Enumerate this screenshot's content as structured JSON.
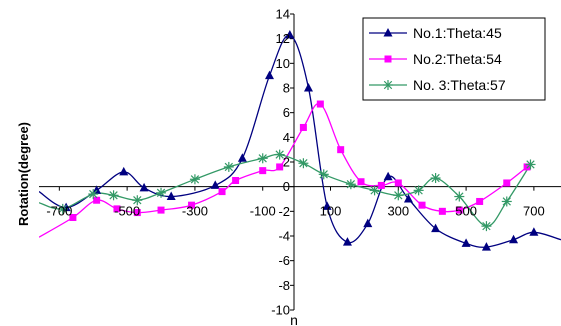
{
  "chart_data": {
    "type": "line",
    "title": "",
    "xlabel": "n",
    "ylabel": "Rotation(degree)",
    "xlim": [
      -760,
      780
    ],
    "ylim": [
      -10,
      14
    ],
    "x_ticks": [
      -700,
      -500,
      -300,
      -100,
      100,
      300,
      500,
      700
    ],
    "y_ticks": [
      -10,
      -8,
      -6,
      -4,
      -2,
      0,
      2,
      4,
      6,
      8,
      10,
      12,
      14
    ],
    "grid": false,
    "legend_position": "top-right",
    "series": [
      {
        "name": "No.1:Theta:45",
        "color": "#000080",
        "marker": "triangle",
        "smooth": true,
        "points": [
          [
            -760,
            -0.4
          ],
          [
            -680,
            -1.7
          ],
          [
            -590,
            -0.3
          ],
          [
            -510,
            1.2
          ],
          [
            -450,
            -0.1
          ],
          [
            -370,
            -0.8
          ],
          [
            -240,
            0.1
          ],
          [
            -160,
            2.3
          ],
          [
            -80,
            9.0
          ],
          [
            -20,
            12.3
          ],
          [
            35,
            8.0
          ],
          [
            90,
            -1.6
          ],
          [
            150,
            -4.5
          ],
          [
            210,
            -3.0
          ],
          [
            270,
            0.8
          ],
          [
            330,
            -1.0
          ],
          [
            410,
            -3.4
          ],
          [
            500,
            -4.6
          ],
          [
            560,
            -4.9
          ],
          [
            640,
            -4.3
          ],
          [
            700,
            -3.7
          ],
          [
            780,
            -4.3
          ]
        ]
      },
      {
        "name": "No.2:Theta:54",
        "color": "#FF00FF",
        "marker": "square",
        "smooth": true,
        "points": [
          [
            -760,
            -4.1
          ],
          [
            -660,
            -2.5
          ],
          [
            -590,
            -1.1
          ],
          [
            -530,
            -1.8
          ],
          [
            -470,
            -2.1
          ],
          [
            -400,
            -1.9
          ],
          [
            -310,
            -1.5
          ],
          [
            -220,
            -0.4
          ],
          [
            -180,
            0.5
          ],
          [
            -100,
            1.3
          ],
          [
            -50,
            1.6
          ],
          [
            20,
            4.8
          ],
          [
            70,
            6.7
          ],
          [
            130,
            3.0
          ],
          [
            190,
            0.4
          ],
          [
            250,
            0.1
          ],
          [
            300,
            0.3
          ],
          [
            370,
            -1.5
          ],
          [
            430,
            -2.0
          ],
          [
            480,
            -1.9
          ],
          [
            540,
            -1.2
          ],
          [
            620,
            0.3
          ],
          [
            680,
            1.6
          ]
        ]
      },
      {
        "name": "No. 3:Theta:57",
        "color": "#339966",
        "marker": "asterisk",
        "smooth": true,
        "points": [
          [
            -760,
            -1.3
          ],
          [
            -690,
            -1.8
          ],
          [
            -600,
            -0.6
          ],
          [
            -540,
            -0.7
          ],
          [
            -470,
            -1.1
          ],
          [
            -400,
            -0.5
          ],
          [
            -300,
            0.6
          ],
          [
            -200,
            1.6
          ],
          [
            -100,
            2.3
          ],
          [
            -50,
            2.6
          ],
          [
            20,
            1.9
          ],
          [
            80,
            1.0
          ],
          [
            160,
            0.2
          ],
          [
            230,
            -0.3
          ],
          [
            300,
            -0.7
          ],
          [
            360,
            -0.3
          ],
          [
            410,
            0.7
          ],
          [
            480,
            -0.8
          ],
          [
            560,
            -3.2
          ],
          [
            620,
            -1.2
          ],
          [
            690,
            1.8
          ]
        ]
      }
    ]
  }
}
